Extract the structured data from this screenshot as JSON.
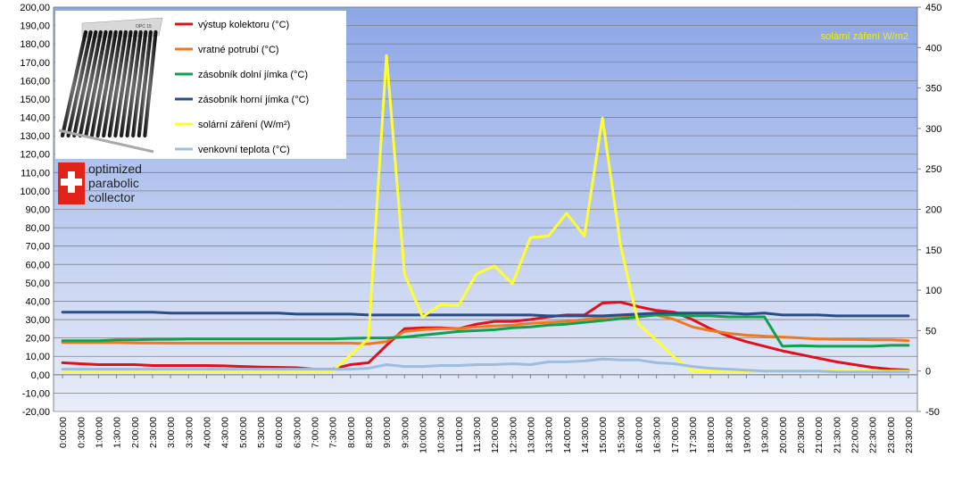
{
  "chart_data": {
    "type": "line",
    "x": [
      "0:00:00",
      "0:30:00",
      "1:00:00",
      "1:30:00",
      "2:00:00",
      "2:30:00",
      "3:00:00",
      "3:30:00",
      "4:00:00",
      "4:30:00",
      "5:00:00",
      "5:30:00",
      "6:00:00",
      "6:30:00",
      "7:00:00",
      "7:30:00",
      "8:00:00",
      "8:30:00",
      "9:00:00",
      "9:30:00",
      "10:00:00",
      "10:30:00",
      "11:00:00",
      "11:30:00",
      "12:00:00",
      "12:30:00",
      "13:00:00",
      "13:30:00",
      "14:00:00",
      "14:30:00",
      "15:00:00",
      "15:30:00",
      "16:00:00",
      "16:30:00",
      "17:00:00",
      "17:30:00",
      "18:00:00",
      "18:30:00",
      "19:00:00",
      "19:30:00",
      "20:00:00",
      "20:30:00",
      "21:00:00",
      "21:30:00",
      "22:00:00",
      "22:30:00",
      "23:00:00",
      "23:30:00"
    ],
    "y_left": {
      "min": -20,
      "max": 200,
      "step": 10
    },
    "y_right": {
      "min": -50,
      "max": 450,
      "step": 50
    },
    "right_axis_title": "solární záření W/m2",
    "series": [
      {
        "name": "výstup kolektoru (°C)",
        "color": "#e0101c",
        "axis": "left",
        "values": [
          6.5,
          6.0,
          5.5,
          5.5,
          5.5,
          5.0,
          5.0,
          5.0,
          5.0,
          4.8,
          4.5,
          4.2,
          4.0,
          3.8,
          3.0,
          3.0,
          5.5,
          6.5,
          16.0,
          25.0,
          25.5,
          25.5,
          25.0,
          27.5,
          29.0,
          29.0,
          30.0,
          31.5,
          32.5,
          32.5,
          39.0,
          39.5,
          37.0,
          35.0,
          34.0,
          30.0,
          25.0,
          21.0,
          18.0,
          15.5,
          13.0,
          11.0,
          9.0,
          7.0,
          5.5,
          4.0,
          3.0,
          2.5
        ]
      },
      {
        "name": "vratné potrubí (°C)",
        "color": "#f07820",
        "axis": "left",
        "values": [
          17.5,
          17.5,
          17.5,
          17.5,
          17.3,
          17.3,
          17.2,
          17.2,
          17.2,
          17.2,
          17.2,
          17.2,
          17.2,
          17.2,
          17.2,
          17.2,
          17.2,
          16.8,
          18.0,
          23.5,
          24.5,
          25.0,
          25.0,
          26.0,
          26.5,
          27.0,
          28.0,
          28.5,
          29.0,
          30.0,
          31.0,
          32.0,
          32.5,
          32.5,
          30.0,
          26.0,
          24.0,
          22.5,
          21.5,
          21.0,
          20.5,
          20.0,
          19.5,
          19.3,
          19.2,
          19.0,
          19.0,
          18.5
        ]
      },
      {
        "name": "zásobník dolní jímka  (°C)",
        "color": "#10a050",
        "axis": "left",
        "values": [
          18.5,
          18.5,
          18.5,
          19.0,
          19.0,
          19.2,
          19.3,
          19.5,
          19.5,
          19.5,
          19.5,
          19.5,
          19.5,
          19.5,
          19.5,
          19.5,
          19.8,
          20.0,
          20.0,
          20.5,
          21.5,
          22.5,
          23.5,
          24.0,
          24.5,
          25.5,
          26.0,
          27.0,
          27.5,
          28.5,
          29.5,
          30.5,
          31.5,
          32.5,
          32.5,
          32.0,
          32.0,
          31.5,
          31.5,
          31.5,
          15.5,
          15.8,
          15.5,
          15.5,
          15.5,
          15.5,
          16.0,
          16.0
        ]
      },
      {
        "name": "zásobník horní jímka (°C)",
        "color": "#2a4d85",
        "axis": "left",
        "values": [
          34.0,
          34.0,
          34.0,
          34.0,
          34.0,
          34.0,
          33.5,
          33.5,
          33.5,
          33.5,
          33.5,
          33.5,
          33.5,
          33.0,
          33.0,
          33.0,
          33.0,
          32.5,
          32.5,
          32.5,
          32.5,
          32.5,
          32.5,
          32.5,
          32.5,
          32.5,
          32.5,
          32.0,
          32.0,
          32.0,
          32.0,
          32.5,
          33.0,
          33.5,
          33.5,
          33.5,
          33.5,
          33.5,
          33.0,
          33.5,
          32.5,
          32.5,
          32.5,
          32.0,
          32.0,
          32.0,
          32.0,
          32.0
        ]
      },
      {
        "name": "solární záření (W/m²)",
        "color": "#ffff30",
        "axis": "right",
        "values": [
          0,
          0,
          0,
          0,
          0,
          0,
          0,
          0,
          0,
          0,
          0,
          0,
          0,
          0,
          0,
          0,
          20,
          40,
          390,
          120,
          67,
          82,
          81,
          120,
          130,
          108,
          165,
          167,
          195,
          167,
          313,
          156,
          58,
          38,
          17,
          0,
          0,
          0,
          0,
          0,
          0,
          0,
          0,
          0,
          0,
          0,
          0,
          0
        ]
      },
      {
        "name": "venkovní teplota (°C)",
        "color": "#9dbde0",
        "axis": "left",
        "values": [
          3.0,
          3.0,
          3.0,
          3.0,
          3.0,
          3.0,
          3.0,
          3.0,
          3.0,
          3.0,
          3.0,
          3.0,
          3.0,
          3.0,
          3.0,
          3.0,
          3.0,
          3.5,
          5.5,
          4.5,
          4.5,
          5.0,
          5.0,
          5.5,
          5.5,
          6.0,
          5.5,
          7.0,
          7.0,
          7.5,
          8.5,
          8.0,
          8.0,
          6.5,
          6.0,
          4.5,
          3.5,
          3.0,
          2.5,
          2.0,
          2.0,
          2.0,
          2.0,
          1.5,
          1.5,
          1.5,
          1.5,
          1.5
        ]
      }
    ]
  },
  "logo": {
    "brand_lines": [
      "optimized",
      "parabolic",
      "collector"
    ],
    "cross_color": "#e2231a",
    "tag_label": "OPC 15"
  },
  "style": {
    "plot_top_color": "#8ca6e6",
    "plot_bottom_color": "#e8edf8",
    "grid_color": "#808080"
  }
}
